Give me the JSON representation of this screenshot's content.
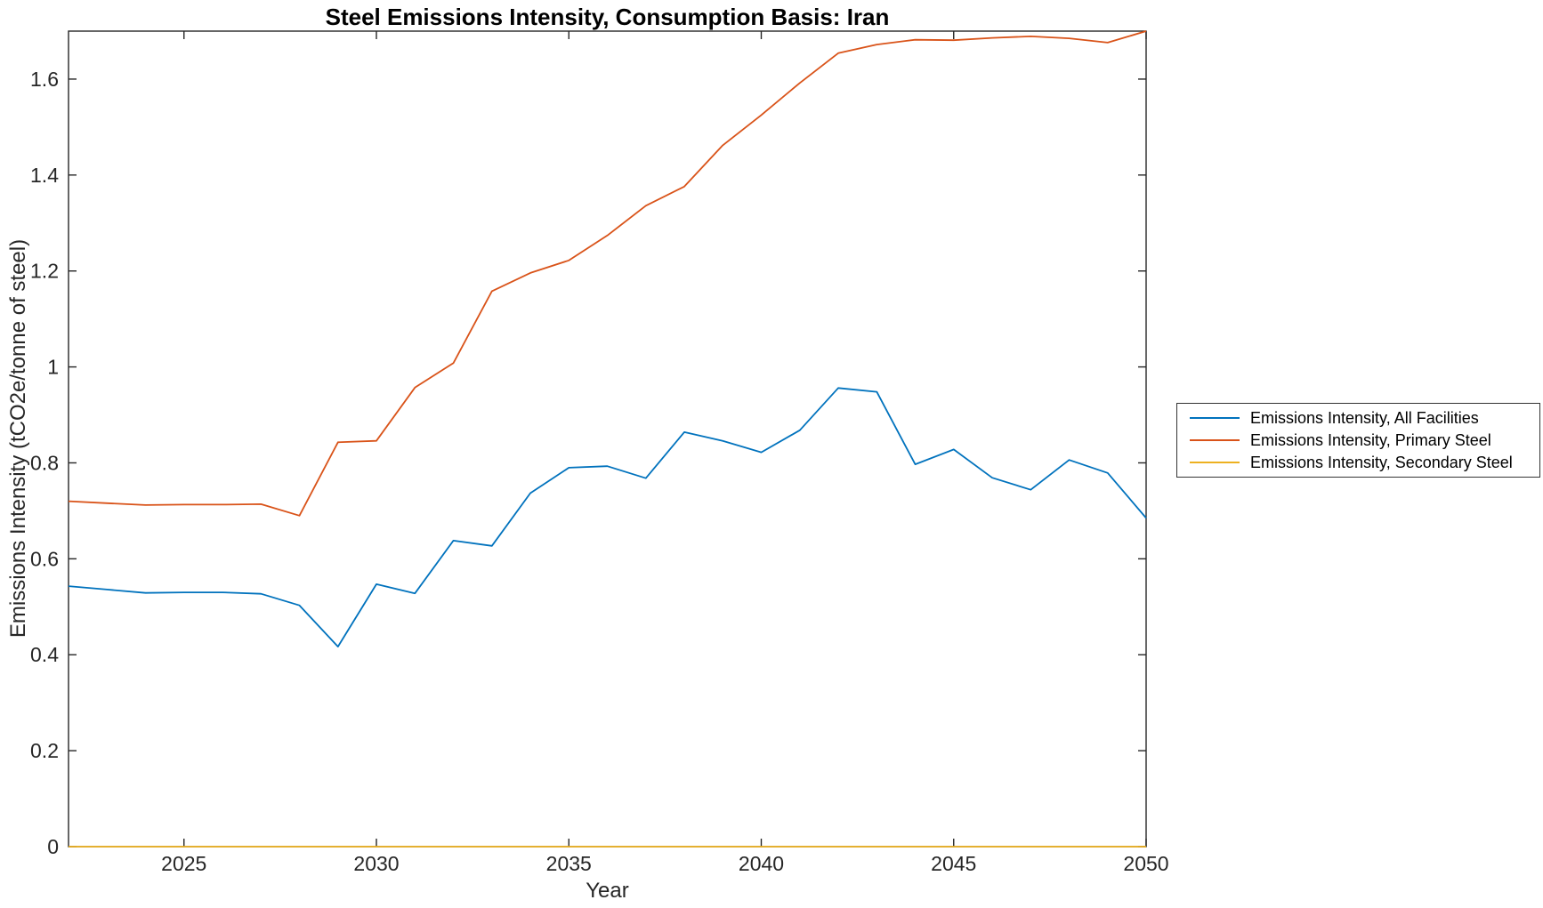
{
  "chart_data": {
    "type": "line",
    "title": "Steel Emissions Intensity, Consumption Basis: Iran",
    "xlabel": "Year",
    "ylabel": "Emissions Intensity (tCO2e/tonne of steel)",
    "xlim": [
      2022,
      2050
    ],
    "ylim": [
      0,
      1.7
    ],
    "x_ticks": [
      2025,
      2030,
      2035,
      2040,
      2045,
      2050
    ],
    "y_ticks": [
      0,
      0.2,
      0.4,
      0.6,
      0.8,
      1,
      1.2,
      1.4,
      1.6
    ],
    "y_tick_labels": [
      "0",
      "0.2",
      "0.4",
      "0.6",
      "0.8",
      "1",
      "1.2",
      "1.4",
      "1.6"
    ],
    "grid": false,
    "legend_position": "outside-right",
    "x": [
      2022,
      2023,
      2024,
      2025,
      2026,
      2027,
      2028,
      2029,
      2030,
      2031,
      2032,
      2033,
      2034,
      2035,
      2036,
      2037,
      2038,
      2039,
      2040,
      2041,
      2042,
      2043,
      2044,
      2045,
      2046,
      2047,
      2048,
      2049,
      2050
    ],
    "series": [
      {
        "name": "Emissions Intensity, All Facilities",
        "color": "#0072BD",
        "values": [
          0.543,
          0.536,
          0.529,
          0.53,
          0.53,
          0.527,
          0.503,
          0.417,
          0.547,
          0.528,
          0.638,
          0.627,
          0.737,
          0.79,
          0.793,
          0.768,
          0.864,
          0.846,
          0.822,
          0.868,
          0.956,
          0.948,
          0.797,
          0.828,
          0.769,
          0.744,
          0.806,
          0.779,
          0.685
        ]
      },
      {
        "name": "Emissions Intensity, Primary Steel",
        "color": "#D95319",
        "values": [
          0.72,
          0.716,
          0.712,
          0.713,
          0.713,
          0.714,
          0.69,
          0.843,
          0.846,
          0.957,
          1.008,
          1.158,
          1.196,
          1.222,
          1.274,
          1.336,
          1.376,
          1.462,
          1.525,
          1.592,
          1.654,
          1.672,
          1.682,
          1.681,
          1.686,
          1.689,
          1.685,
          1.676,
          1.7
        ]
      },
      {
        "name": "Emissions Intensity, Secondary Steel",
        "color": "#EDB120",
        "values": [
          0,
          0,
          0,
          0,
          0,
          0,
          0,
          0,
          0,
          0,
          0,
          0,
          0,
          0,
          0,
          0,
          0,
          0,
          0,
          0,
          0,
          0,
          0,
          0,
          0,
          0,
          0,
          0,
          0
        ]
      }
    ]
  }
}
